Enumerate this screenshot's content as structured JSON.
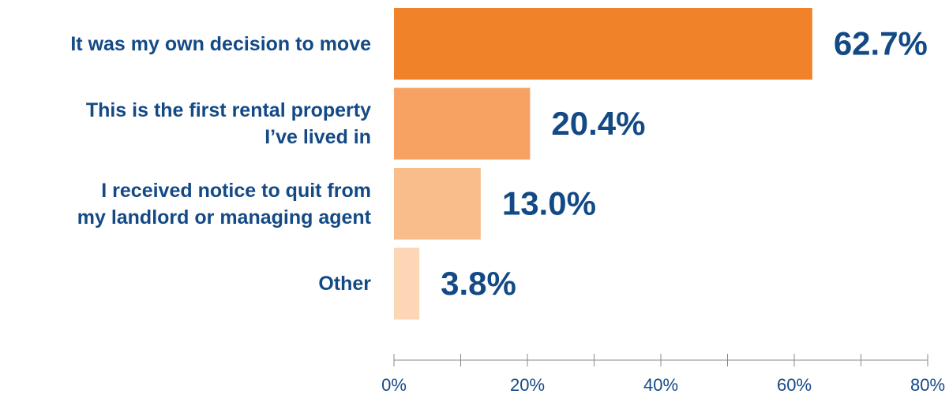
{
  "chart_data": {
    "type": "bar",
    "orientation": "horizontal",
    "categories": [
      "It was my own decision to move",
      "This is the first rental property\nI’ve lived in",
      "I received notice to quit from\nmy landlord or managing agent",
      "Other"
    ],
    "values": [
      62.7,
      20.4,
      13.0,
      3.8
    ],
    "value_labels": [
      "62.7%",
      "20.4%",
      "13.0%",
      "3.8%"
    ],
    "colors": [
      "#f0822a",
      "#f7a262",
      "#f9bd8b",
      "#fcd6b5"
    ],
    "xlim": [
      0,
      80
    ],
    "xticks": [
      {
        "value": 0,
        "label": "0%"
      },
      {
        "value": 20,
        "label": "20%"
      },
      {
        "value": 40,
        "label": "40%"
      },
      {
        "value": 60,
        "label": "60%"
      },
      {
        "value": 80,
        "label": "80%"
      }
    ],
    "minor_xticks": [
      10,
      30,
      50,
      70
    ]
  }
}
